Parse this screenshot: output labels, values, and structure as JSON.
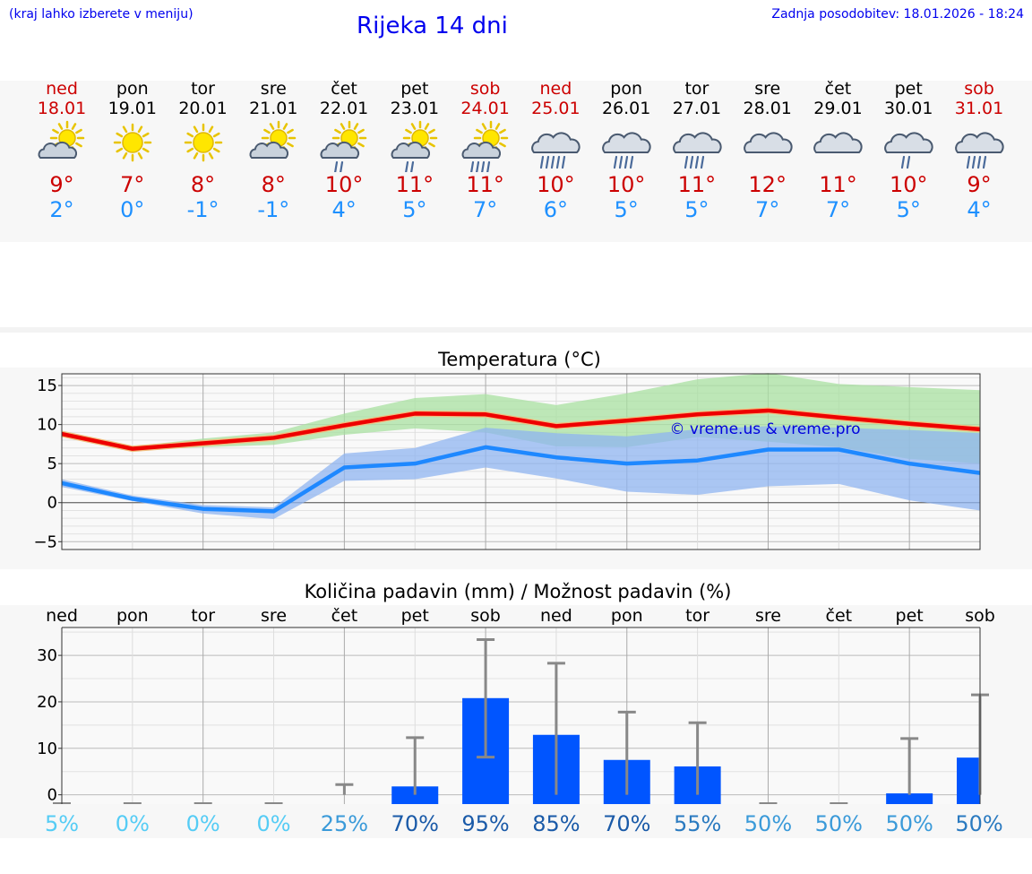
{
  "header": {
    "hint": "(kraj lahko izberete v meniju)",
    "title": "Rijeka 14 dni",
    "updated": "Zadnja posodobitev: 18.01.2026 - 18:24"
  },
  "days": [
    {
      "name": "ned",
      "date": "18.01",
      "weekend": true,
      "icon": "partly-cloudy-icon",
      "max": "9°",
      "min": "2°"
    },
    {
      "name": "pon",
      "date": "19.01",
      "weekend": false,
      "icon": "sun-icon",
      "max": "7°",
      "min": "0°"
    },
    {
      "name": "tor",
      "date": "20.01",
      "weekend": false,
      "icon": "sun-icon",
      "max": "8°",
      "min": "-1°"
    },
    {
      "name": "sre",
      "date": "21.01",
      "weekend": false,
      "icon": "partly-cloudy-icon",
      "max": "8°",
      "min": "-1°"
    },
    {
      "name": "čet",
      "date": "22.01",
      "weekend": false,
      "icon": "partly-cloudy-light-rain-icon",
      "max": "10°",
      "min": "4°"
    },
    {
      "name": "pet",
      "date": "23.01",
      "weekend": false,
      "icon": "partly-cloudy-light-rain-icon",
      "max": "11°",
      "min": "5°"
    },
    {
      "name": "sob",
      "date": "24.01",
      "weekend": true,
      "icon": "partly-cloudy-rain-icon",
      "max": "11°",
      "min": "7°"
    },
    {
      "name": "ned",
      "date": "25.01",
      "weekend": true,
      "icon": "cloud-heavy-rain-icon",
      "max": "10°",
      "min": "6°"
    },
    {
      "name": "pon",
      "date": "26.01",
      "weekend": false,
      "icon": "cloud-rain-icon",
      "max": "10°",
      "min": "5°"
    },
    {
      "name": "tor",
      "date": "27.01",
      "weekend": false,
      "icon": "cloud-rain-icon",
      "max": "11°",
      "min": "5°"
    },
    {
      "name": "sre",
      "date": "28.01",
      "weekend": false,
      "icon": "cloud-icon",
      "max": "12°",
      "min": "7°"
    },
    {
      "name": "čet",
      "date": "29.01",
      "weekend": false,
      "icon": "cloud-icon",
      "max": "11°",
      "min": "7°"
    },
    {
      "name": "pet",
      "date": "30.01",
      "weekend": false,
      "icon": "cloud-light-rain-icon",
      "max": "10°",
      "min": "5°"
    },
    {
      "name": "sob",
      "date": "31.01",
      "weekend": true,
      "icon": "cloud-rain-icon",
      "max": "9°",
      "min": "4°"
    }
  ],
  "colors": {
    "max": "#ee0000",
    "min": "#1e88ff",
    "maxBand": "#a8e0a0",
    "minBand": "#8fb4f0",
    "bar": "#0055ff",
    "err": "#888888",
    "watermark": "#0000dd"
  },
  "chart_data": [
    {
      "type": "line",
      "title": "Temperatura (°C)",
      "watermark": "© vreme.us & vreme.pro",
      "ylim": [
        -6,
        16.5
      ],
      "yticks": [
        15,
        10,
        5,
        0,
        -5
      ],
      "ytick_labels": [
        "15",
        "10",
        "5",
        "0",
        "−5"
      ],
      "x": [
        0,
        1,
        2,
        3,
        4,
        5,
        6,
        7,
        8,
        9,
        10,
        11,
        12,
        13
      ],
      "series": [
        {
          "name": "max",
          "values": [
            8.8,
            6.9,
            7.6,
            8.3,
            9.9,
            11.4,
            11.3,
            9.8,
            10.5,
            11.3,
            11.8,
            10.9,
            10.1,
            9.4
          ],
          "band_low": [
            8.5,
            6.7,
            7.1,
            7.4,
            8.7,
            9.5,
            9.0,
            7.2,
            7.1,
            8.4,
            7.8,
            7.1,
            5.6,
            5.0
          ],
          "band_high": [
            9.1,
            7.2,
            8.2,
            9.0,
            11.4,
            13.4,
            13.9,
            12.5,
            14.0,
            15.8,
            16.6,
            15.2,
            14.8,
            14.4
          ]
        },
        {
          "name": "min",
          "values": [
            2.5,
            0.5,
            -0.8,
            -1.1,
            4.5,
            5.0,
            7.1,
            5.8,
            5.0,
            5.4,
            6.8,
            6.8,
            5.0,
            3.8
          ],
          "band_low": [
            2.0,
            0.2,
            -1.4,
            -2.1,
            2.8,
            3.0,
            4.5,
            3.1,
            1.4,
            1.0,
            2.1,
            2.4,
            0.3,
            -1.0
          ],
          "band_high": [
            3.0,
            0.9,
            -0.3,
            -0.6,
            6.3,
            7.0,
            9.6,
            8.9,
            8.5,
            9.4,
            9.8,
            9.6,
            9.3,
            8.9
          ]
        }
      ]
    },
    {
      "type": "bar",
      "title": "Količina padavin (mm) / Možnost padavin (%)",
      "categories": [
        "ned",
        "pon",
        "tor",
        "sre",
        "čet",
        "pet",
        "sob",
        "ned",
        "pon",
        "tor",
        "sre",
        "čet",
        "pet",
        "sob"
      ],
      "ylim": [
        -2,
        36
      ],
      "yticks": [
        30,
        20,
        10,
        0
      ],
      "ytick_labels": [
        "30",
        "20",
        "10",
        "0"
      ],
      "values": [
        0,
        0,
        0,
        0,
        0,
        1.8,
        20.8,
        12.9,
        7.5,
        6.1,
        0,
        0,
        0.3,
        8.0
      ],
      "err_high": [
        0,
        0,
        0,
        0,
        2.2,
        12.3,
        33.4,
        28.3,
        17.8,
        15.5,
        0,
        0,
        12.1,
        21.5
      ],
      "err_low": [
        0,
        0,
        0,
        0,
        0,
        0,
        8.1,
        0,
        0,
        0,
        0,
        0,
        0,
        0
      ],
      "probability": [
        "5%",
        "0%",
        "0%",
        "0%",
        "25%",
        "70%",
        "95%",
        "85%",
        "70%",
        "55%",
        "50%",
        "50%",
        "50%",
        "50%"
      ],
      "probability_colors": [
        "#55ccf5",
        "#55ccf5",
        "#55ccf5",
        "#55ccf5",
        "#3a9ad9",
        "#1a5aa8",
        "#1a5aa8",
        "#1a5aa8",
        "#1a5aa8",
        "#2a7ac0",
        "#3a9ad9",
        "#3a9ad9",
        "#3a9ad9",
        "#2a7ac0"
      ]
    }
  ]
}
